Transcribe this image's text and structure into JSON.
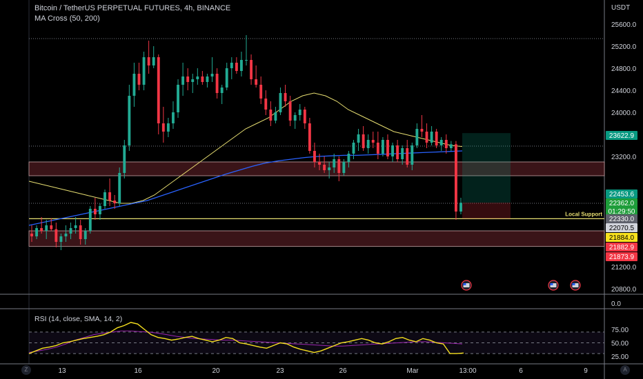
{
  "header": {
    "title": "Bitcoin / TetherUS PERPETUAL FUTURES, 4h, BINANCE",
    "indicator": "MA Cross (50, 200)",
    "currency": "USDT"
  },
  "rsi": {
    "title": "RSI (14, close, SMA, 14, 2)",
    "ticks": [
      "75.00",
      "50.00",
      "25.00"
    ]
  },
  "main_axis": {
    "ticks": [
      "25600.0",
      "25200.0",
      "24800.0",
      "24400.0",
      "24000.0",
      "23200.0",
      "21200.0",
      "20800.0"
    ],
    "separator_value": "0.0"
  },
  "time_axis": {
    "labels": [
      "13",
      "16",
      "20",
      "23",
      "26",
      "Mar",
      "13:00",
      "6",
      "9"
    ]
  },
  "price_badges": [
    {
      "text": "23622.9",
      "bg": "#089981",
      "fg": "#ffffff"
    },
    {
      "text": "22453.6",
      "bg": "#089981",
      "fg": "#ffffff"
    },
    {
      "text": "22362.0",
      "bg": "#1e9d3a",
      "fg": "#ffffff"
    },
    {
      "text": "01:29:50",
      "bg": "#1e9d3a",
      "fg": "#ffffff"
    },
    {
      "text": "22330.0",
      "bg": "#5d606b",
      "fg": "#ffffff"
    },
    {
      "text": "22070.5",
      "bg": "#d1d4dc",
      "fg": "#000000"
    },
    {
      "text": "21884.0",
      "bg": "#f7e11e",
      "fg": "#000000"
    },
    {
      "text": "21882.9",
      "bg": "#f23645",
      "fg": "#ffffff"
    },
    {
      "text": "21873.9",
      "bg": "#f23645",
      "fg": "#ffffff"
    }
  ],
  "annotations": {
    "local_support": "Local Support"
  },
  "corner_buttons": {
    "left": "Z",
    "right": "A"
  },
  "colors": {
    "up": "#22ab94",
    "down": "#f23645",
    "ma50": "#e8df72",
    "ma200": "#2962ff",
    "rsi": "#f7e11e",
    "rsi_ma": "#9c27b0",
    "zone": "#3a1418",
    "support": "#e8df72"
  },
  "chart_data": {
    "type": "candlestick",
    "x": [
      13,
      16,
      20,
      23,
      26,
      "Mar",
      6,
      9
    ],
    "ylim": [
      20700,
      25700
    ],
    "candles": [
      {
        "o": 21800,
        "h": 21950,
        "l": 21650,
        "c": 21750
      },
      {
        "o": 21750,
        "h": 21950,
        "l": 21700,
        "c": 21900
      },
      {
        "o": 21900,
        "h": 22100,
        "l": 21800,
        "c": 21850
      },
      {
        "o": 21850,
        "h": 22050,
        "l": 21700,
        "c": 21950
      },
      {
        "o": 21950,
        "h": 22080,
        "l": 21850,
        "c": 21880
      },
      {
        "o": 21880,
        "h": 22000,
        "l": 21550,
        "c": 21650
      },
      {
        "o": 21650,
        "h": 21800,
        "l": 21500,
        "c": 21750
      },
      {
        "o": 21750,
        "h": 21950,
        "l": 21650,
        "c": 21800
      },
      {
        "o": 21800,
        "h": 22000,
        "l": 21700,
        "c": 21900
      },
      {
        "o": 21900,
        "h": 22100,
        "l": 21800,
        "c": 21950
      },
      {
        "o": 21950,
        "h": 22050,
        "l": 21600,
        "c": 21700
      },
      {
        "o": 21700,
        "h": 21900,
        "l": 21600,
        "c": 21850
      },
      {
        "o": 21850,
        "h": 22300,
        "l": 21800,
        "c": 22250
      },
      {
        "o": 22250,
        "h": 22450,
        "l": 22050,
        "c": 22150
      },
      {
        "o": 22150,
        "h": 22350,
        "l": 22050,
        "c": 22300
      },
      {
        "o": 22300,
        "h": 22600,
        "l": 22250,
        "c": 22550
      },
      {
        "o": 22550,
        "h": 22800,
        "l": 22300,
        "c": 22400
      },
      {
        "o": 22400,
        "h": 22500,
        "l": 22250,
        "c": 22350
      },
      {
        "o": 22350,
        "h": 23000,
        "l": 22300,
        "c": 22900
      },
      {
        "o": 22900,
        "h": 23500,
        "l": 22800,
        "c": 23400
      },
      {
        "o": 23400,
        "h": 24500,
        "l": 23300,
        "c": 24300
      },
      {
        "o": 24300,
        "h": 24900,
        "l": 24100,
        "c": 24700
      },
      {
        "o": 24700,
        "h": 24900,
        "l": 24400,
        "c": 24500
      },
      {
        "o": 24500,
        "h": 25100,
        "l": 24400,
        "c": 25000
      },
      {
        "o": 25000,
        "h": 25300,
        "l": 24700,
        "c": 24850
      },
      {
        "o": 24850,
        "h": 25200,
        "l": 24800,
        "c": 25000
      },
      {
        "o": 25000,
        "h": 25050,
        "l": 23600,
        "c": 23800
      },
      {
        "o": 23800,
        "h": 24100,
        "l": 23450,
        "c": 23650
      },
      {
        "o": 23650,
        "h": 23900,
        "l": 23550,
        "c": 23800
      },
      {
        "o": 23800,
        "h": 24200,
        "l": 23700,
        "c": 24000
      },
      {
        "o": 24000,
        "h": 24600,
        "l": 23900,
        "c": 24500
      },
      {
        "o": 24500,
        "h": 24900,
        "l": 24300,
        "c": 24650
      },
      {
        "o": 24650,
        "h": 24800,
        "l": 24400,
        "c": 24550
      },
      {
        "o": 24550,
        "h": 24700,
        "l": 24350,
        "c": 24600
      },
      {
        "o": 24600,
        "h": 24800,
        "l": 24500,
        "c": 24650
      },
      {
        "o": 24650,
        "h": 24750,
        "l": 24500,
        "c": 24550
      },
      {
        "o": 24550,
        "h": 24700,
        "l": 24450,
        "c": 24650
      },
      {
        "o": 24650,
        "h": 25000,
        "l": 24550,
        "c": 24700
      },
      {
        "o": 24700,
        "h": 24800,
        "l": 24250,
        "c": 24350
      },
      {
        "o": 24350,
        "h": 24500,
        "l": 24150,
        "c": 24450
      },
      {
        "o": 24450,
        "h": 24900,
        "l": 24400,
        "c": 24800
      },
      {
        "o": 24800,
        "h": 25000,
        "l": 24600,
        "c": 24900
      },
      {
        "o": 24900,
        "h": 25000,
        "l": 24700,
        "c": 24750
      },
      {
        "o": 24750,
        "h": 25100,
        "l": 24650,
        "c": 24950
      },
      {
        "o": 24950,
        "h": 25400,
        "l": 24850,
        "c": 24950
      },
      {
        "o": 24950,
        "h": 25050,
        "l": 24500,
        "c": 24600
      },
      {
        "o": 24600,
        "h": 24850,
        "l": 24450,
        "c": 24500
      },
      {
        "o": 24500,
        "h": 24650,
        "l": 24150,
        "c": 24250
      },
      {
        "o": 24250,
        "h": 24400,
        "l": 23950,
        "c": 24050
      },
      {
        "o": 24050,
        "h": 24200,
        "l": 23750,
        "c": 23850
      },
      {
        "o": 23850,
        "h": 24100,
        "l": 23800,
        "c": 24000
      },
      {
        "o": 24000,
        "h": 24450,
        "l": 23950,
        "c": 24350
      },
      {
        "o": 24350,
        "h": 24500,
        "l": 24100,
        "c": 24200
      },
      {
        "o": 24200,
        "h": 24300,
        "l": 23750,
        "c": 23850
      },
      {
        "o": 23850,
        "h": 24000,
        "l": 23700,
        "c": 23950
      },
      {
        "o": 23950,
        "h": 24150,
        "l": 23850,
        "c": 24050
      },
      {
        "o": 24050,
        "h": 24100,
        "l": 23700,
        "c": 23800
      },
      {
        "o": 23800,
        "h": 23900,
        "l": 23250,
        "c": 23300
      },
      {
        "o": 23300,
        "h": 23450,
        "l": 23000,
        "c": 23100
      },
      {
        "o": 23100,
        "h": 23250,
        "l": 22950,
        "c": 23050
      },
      {
        "o": 23050,
        "h": 23200,
        "l": 22900,
        "c": 22950
      },
      {
        "o": 22950,
        "h": 23100,
        "l": 22800,
        "c": 23000
      },
      {
        "o": 23000,
        "h": 23250,
        "l": 22900,
        "c": 23150
      },
      {
        "o": 23150,
        "h": 23200,
        "l": 22750,
        "c": 22900
      },
      {
        "o": 22900,
        "h": 23150,
        "l": 22850,
        "c": 23100
      },
      {
        "o": 23100,
        "h": 23300,
        "l": 23000,
        "c": 23250
      },
      {
        "o": 23250,
        "h": 23500,
        "l": 23150,
        "c": 23450
      },
      {
        "o": 23450,
        "h": 23700,
        "l": 23300,
        "c": 23600
      },
      {
        "o": 23600,
        "h": 23750,
        "l": 23300,
        "c": 23350
      },
      {
        "o": 23350,
        "h": 23600,
        "l": 23250,
        "c": 23500
      },
      {
        "o": 23500,
        "h": 23650,
        "l": 23350,
        "c": 23450
      },
      {
        "o": 23450,
        "h": 23650,
        "l": 23150,
        "c": 23250
      },
      {
        "o": 23250,
        "h": 23550,
        "l": 23200,
        "c": 23500
      },
      {
        "o": 23500,
        "h": 23600,
        "l": 23150,
        "c": 23200
      },
      {
        "o": 23200,
        "h": 23450,
        "l": 23100,
        "c": 23400
      },
      {
        "o": 23400,
        "h": 23500,
        "l": 23100,
        "c": 23150
      },
      {
        "o": 23150,
        "h": 23400,
        "l": 23050,
        "c": 23350
      },
      {
        "o": 23350,
        "h": 23500,
        "l": 23000,
        "c": 23050
      },
      {
        "o": 23050,
        "h": 23450,
        "l": 22950,
        "c": 23400
      },
      {
        "o": 23400,
        "h": 23800,
        "l": 23350,
        "c": 23700
      },
      {
        "o": 23700,
        "h": 23950,
        "l": 23550,
        "c": 23650
      },
      {
        "o": 23650,
        "h": 23800,
        "l": 23350,
        "c": 23450
      },
      {
        "o": 23450,
        "h": 23750,
        "l": 23400,
        "c": 23650
      },
      {
        "o": 23650,
        "h": 23700,
        "l": 23350,
        "c": 23400
      },
      {
        "o": 23400,
        "h": 23550,
        "l": 23300,
        "c": 23500
      },
      {
        "o": 23500,
        "h": 23600,
        "l": 23250,
        "c": 23350
      },
      {
        "o": 23350,
        "h": 23480,
        "l": 23300,
        "c": 23420
      },
      {
        "o": 23420,
        "h": 23480,
        "l": 22050,
        "c": 22200
      },
      {
        "o": 22200,
        "h": 22450,
        "l": 22150,
        "c": 22360
      }
    ],
    "ma50": [
      22750,
      22700,
      22650,
      22600,
      22550,
      22500,
      22450,
      22400,
      22350,
      22350,
      22400,
      22500,
      22650,
      22800,
      22950,
      23100,
      23250,
      23400,
      23550,
      23700,
      23800,
      23900,
      24050,
      24200,
      24300,
      24350,
      24300,
      24200,
      24050,
      23950,
      23850,
      23750,
      23650,
      23600,
      23550,
      23500,
      23450,
      23400,
      23380
    ],
    "ma200": [
      21950,
      22000,
      22050,
      22100,
      22150,
      22200,
      22250,
      22300,
      22350,
      22400,
      22480,
      22560,
      22640,
      22720,
      22800,
      22880,
      22950,
      23020,
      23080,
      23120,
      23150,
      23180,
      23200,
      23210,
      23220,
      23220,
      23230,
      23240,
      23250,
      23260,
      23270,
      23280,
      23290,
      23300
    ],
    "rsi_values": [
      30,
      35,
      40,
      42,
      45,
      50,
      52,
      55,
      58,
      60,
      62,
      65,
      70,
      78,
      82,
      88,
      85,
      75,
      65,
      60,
      58,
      55,
      57,
      60,
      62,
      58,
      55,
      52,
      55,
      60,
      58,
      50,
      48,
      45,
      42,
      40,
      45,
      50,
      48,
      42,
      38,
      35,
      32,
      35,
      40,
      45,
      50,
      52,
      55,
      58,
      55,
      50,
      48,
      52,
      58,
      60,
      55,
      52,
      58,
      55,
      50,
      48,
      30,
      30,
      31
    ],
    "rsi_ma_values": [
      32,
      35,
      38,
      42,
      48,
      55,
      60,
      65,
      68,
      70,
      72,
      72,
      71,
      70,
      68,
      65,
      62,
      60,
      58,
      57,
      56,
      55,
      55,
      54,
      53,
      52,
      51,
      50,
      49,
      48,
      47,
      46,
      45,
      44,
      44,
      45,
      46,
      47,
      48,
      49,
      50,
      51,
      52,
      52,
      51,
      50,
      49,
      48
    ]
  }
}
